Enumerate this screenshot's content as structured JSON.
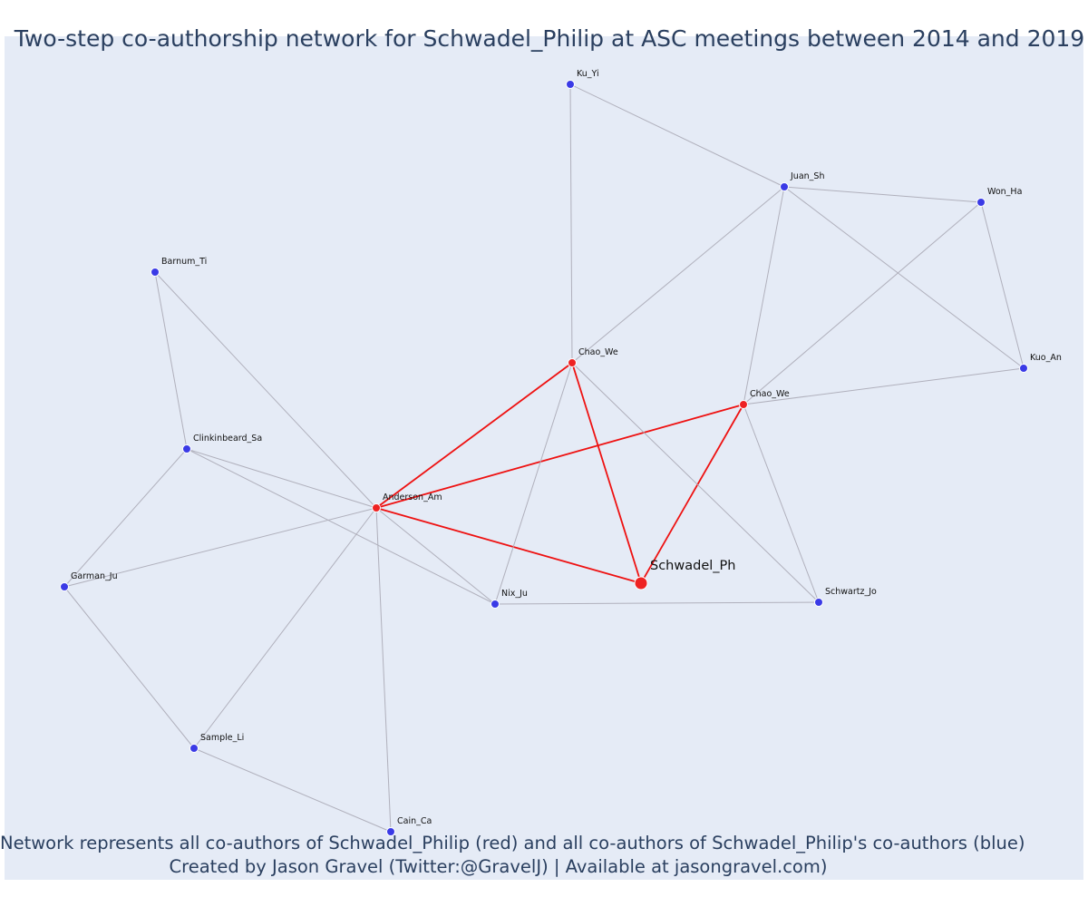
{
  "title": "Two-step co-authorship network for Schwadel_Philip at ASC meetings between 2014 and 2019",
  "captions": [
    "Network represents all co-authors of Schwadel_Philip (red) and all co-authors of Schwadel_Philip's co-authors (blue)",
    "Created by Jason Gravel (Twitter:@GravelJ) | Available at jasongravel.com)"
  ],
  "colors": {
    "background": "#e5ebf6",
    "red_node": "#ee2222",
    "blue_node": "#3a3ae6",
    "red_edge": "#ee1111",
    "grey_edge": "#b0b0bc",
    "text": "#2a3f5f"
  },
  "nodes": [
    {
      "id": "schwadel",
      "label": "Schwadel_Ph",
      "group": "focal"
    },
    {
      "id": "anderson",
      "label": "Anderson_Am",
      "group": "red"
    },
    {
      "id": "chao1",
      "label": "Chao_We",
      "group": "red"
    },
    {
      "id": "chao2",
      "label": "Chao_We",
      "group": "red"
    },
    {
      "id": "ku",
      "label": "Ku_Yi",
      "group": "blue"
    },
    {
      "id": "juan",
      "label": "Juan_Sh",
      "group": "blue"
    },
    {
      "id": "won",
      "label": "Won_Ha",
      "group": "blue"
    },
    {
      "id": "kuo",
      "label": "Kuo_An",
      "group": "blue"
    },
    {
      "id": "barnum",
      "label": "Barnum_Ti",
      "group": "blue"
    },
    {
      "id": "clink",
      "label": "Clinkinbeard_Sa",
      "group": "blue"
    },
    {
      "id": "garman",
      "label": "Garman_Ju",
      "group": "blue"
    },
    {
      "id": "nix",
      "label": "Nix_Ju",
      "group": "blue"
    },
    {
      "id": "schwartz",
      "label": "Schwartz_Jo",
      "group": "blue"
    },
    {
      "id": "sample",
      "label": "Sample_Li",
      "group": "blue"
    },
    {
      "id": "cain",
      "label": "Cain_Ca",
      "group": "blue"
    }
  ],
  "edges": [
    [
      "anderson",
      "schwadel",
      "red"
    ],
    [
      "chao1",
      "schwadel",
      "red"
    ],
    [
      "chao2",
      "schwadel",
      "red"
    ],
    [
      "anderson",
      "chao1",
      "red"
    ],
    [
      "anderson",
      "chao2",
      "red"
    ],
    [
      "ku",
      "chao1",
      "grey"
    ],
    [
      "ku",
      "juan",
      "grey"
    ],
    [
      "juan",
      "won",
      "grey"
    ],
    [
      "juan",
      "kuo",
      "grey"
    ],
    [
      "juan",
      "chao1",
      "grey"
    ],
    [
      "juan",
      "chao2",
      "grey"
    ],
    [
      "won",
      "kuo",
      "grey"
    ],
    [
      "won",
      "chao2",
      "grey"
    ],
    [
      "kuo",
      "chao2",
      "grey"
    ],
    [
      "chao2",
      "schwartz",
      "grey"
    ],
    [
      "chao1",
      "schwartz",
      "grey"
    ],
    [
      "chao1",
      "nix",
      "grey"
    ],
    [
      "nix",
      "schwartz",
      "grey"
    ],
    [
      "barnum",
      "clink",
      "grey"
    ],
    [
      "barnum",
      "anderson",
      "grey"
    ],
    [
      "clink",
      "anderson",
      "grey"
    ],
    [
      "clink",
      "nix",
      "grey"
    ],
    [
      "clink",
      "garman",
      "grey"
    ],
    [
      "garman",
      "anderson",
      "grey"
    ],
    [
      "garman",
      "sample",
      "grey"
    ],
    [
      "sample",
      "anderson",
      "grey"
    ],
    [
      "sample",
      "cain",
      "grey"
    ],
    [
      "cain",
      "anderson",
      "grey"
    ],
    [
      "anderson",
      "nix",
      "grey"
    ]
  ]
}
